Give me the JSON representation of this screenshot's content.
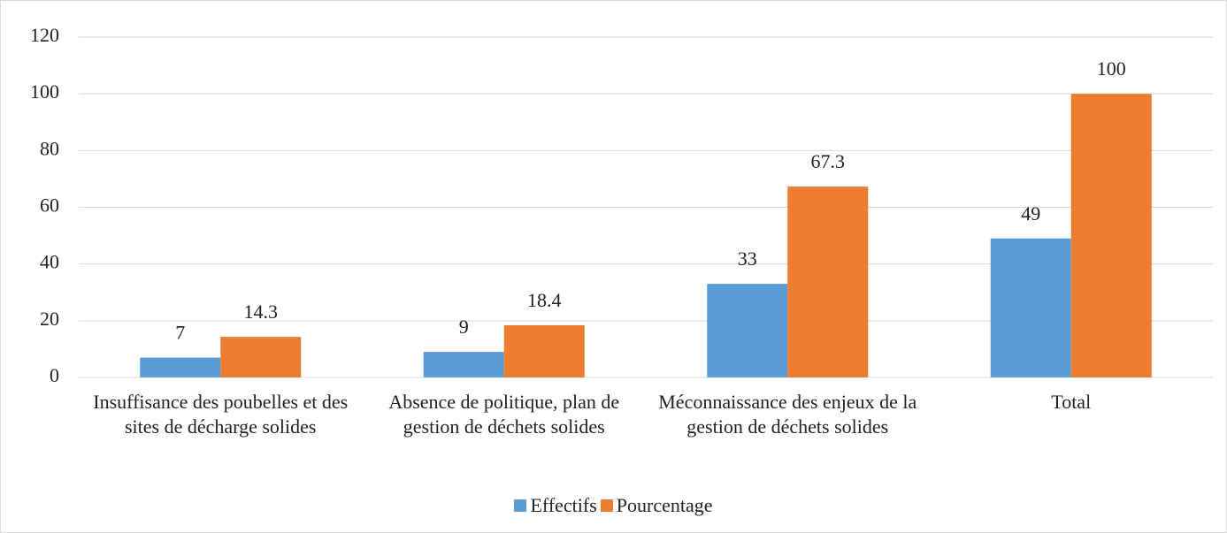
{
  "chart_data": {
    "type": "bar",
    "categories": [
      "Insuffisance des poubelles et des sites de décharge solides",
      "Absence de politique, plan de gestion de déchets solides",
      "Méconnaissance des enjeux de la gestion de déchets solides",
      "Total"
    ],
    "series": [
      {
        "name": "Effectifs",
        "color": "#5b9bd5",
        "values": [
          7,
          9,
          33,
          49
        ]
      },
      {
        "name": "Pourcentage",
        "color": "#ed7d31",
        "values": [
          14.3,
          18.4,
          67.3,
          100
        ]
      }
    ],
    "ylim": [
      0,
      120
    ],
    "yticks": [
      0,
      20,
      40,
      60,
      80,
      100,
      120
    ],
    "grid": true,
    "legend": "bottom"
  }
}
